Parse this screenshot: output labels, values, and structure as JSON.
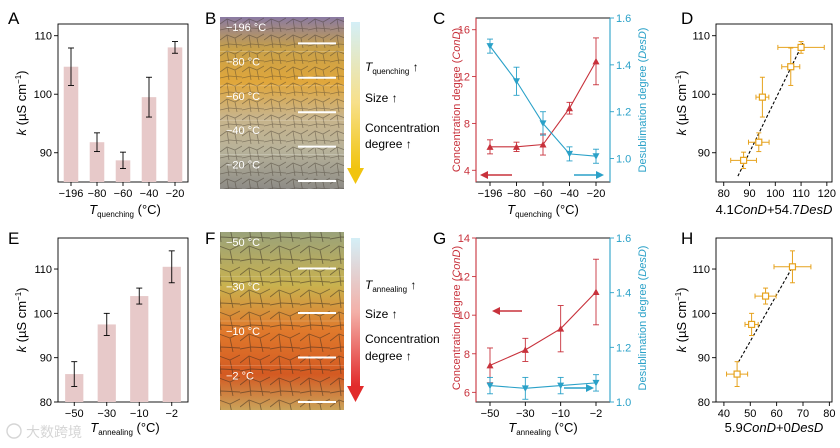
{
  "colors": {
    "bar": "#e7c9c9",
    "bar_stroke": "#c7a3a3",
    "red": "#c8323c",
    "blue": "#2aa1c8",
    "orange": "#e6a21d",
    "arrow_yellow": "#f1c40f",
    "arrow_red": "#e22b2b",
    "arrow_top": "#d4eff7"
  },
  "watermark": "大数跨境",
  "panels": {
    "A": {
      "letter": "A",
      "chart_data": {
        "type": "bar",
        "categories": [
          "−196",
          "−80",
          "−60",
          "−40",
          "−20"
        ],
        "values": [
          104.7,
          91.8,
          88.7,
          99.5,
          108.0
        ],
        "errors": [
          3.2,
          1.6,
          1.4,
          3.4,
          1.0
        ],
        "ylabel_main": "k",
        "ylabel_unit": " (µS cm",
        "ylabel_sup": "−1",
        "ylabel_close": ")",
        "xlabel_main": "T",
        "xlabel_sub": "quenching",
        "xlabel_unit": " (°C)",
        "yticks": [
          "90",
          "100",
          "110"
        ],
        "ylim": [
          85,
          112
        ]
      }
    },
    "B": {
      "letter": "B",
      "image_labels": [
        "−196 °C",
        "−80 °C",
        "−60 °C",
        "−40 °C",
        "−20 °C"
      ],
      "arrow_text": {
        "t_main": "T",
        "t_sub": "quenching",
        "t_arrow": " ↑",
        "size": "Size ↑",
        "conc_line1": "Concentration",
        "conc_line2": "degree ↑"
      }
    },
    "C": {
      "letter": "C",
      "chart_data": {
        "type": "line",
        "x_categories": [
          "−196",
          "−80",
          "−60",
          "−40",
          "−20"
        ],
        "series": [
          {
            "name": "ConD",
            "axis": "left",
            "values": [
              6.0,
              6.0,
              6.2,
              9.3,
              13.3
            ],
            "errors": [
              0.6,
              0.4,
              0.9,
              0.5,
              2.0
            ]
          },
          {
            "name": "DesD",
            "axis": "right",
            "values": [
              1.48,
              1.33,
              1.15,
              1.02,
              1.01
            ],
            "errors": [
              0.03,
              0.06,
              0.05,
              0.03,
              0.03
            ]
          }
        ],
        "ylabel_left": "Concentration degree (",
        "ylabel_left_var": "ConD",
        "ylabel_right": "Desublimation degree (",
        "ylabel_right_var": "DesD",
        "ylabel_close": ")",
        "xlabel_main": "T",
        "xlabel_sub": "quenching",
        "xlabel_unit": " (°C)",
        "yticks_left": [
          "4",
          "8",
          "12",
          "16"
        ],
        "yticks_right": [
          "1.0",
          "1.2",
          "1.4",
          "1.6"
        ],
        "ylim_left": [
          3,
          17
        ],
        "ylim_right": [
          0.9,
          1.6
        ]
      }
    },
    "D": {
      "letter": "D",
      "chart_data": {
        "type": "scatter",
        "points": [
          {
            "x": 87.7,
            "y": 88.7,
            "xerr": 5.0,
            "yerr": 1.4
          },
          {
            "x": 93.6,
            "y": 91.8,
            "xerr": 4.0,
            "yerr": 1.6
          },
          {
            "x": 95.0,
            "y": 99.5,
            "xerr": 2.5,
            "yerr": 3.4
          },
          {
            "x": 106.0,
            "y": 104.7,
            "xerr": 3.5,
            "yerr": 3.2
          },
          {
            "x": 110.0,
            "y": 108.0,
            "xerr": 9.0,
            "yerr": 1.0
          }
        ],
        "fit": {
          "x0": 85.5,
          "y0": 86.0,
          "x1": 111.0,
          "y1": 109.0
        },
        "xlabel_a": "4.1",
        "xlabel_b": "ConD",
        "xlabel_c": "+54.7",
        "xlabel_d": "DesD",
        "ylabel_main": "k",
        "ylabel_unit": " (µS cm",
        "ylabel_sup": "−1",
        "ylabel_close": ")",
        "xticks": [
          "80",
          "90",
          "100",
          "110",
          "120"
        ],
        "yticks": [
          "90",
          "100",
          "110"
        ],
        "xlim": [
          77,
          122
        ],
        "ylim": [
          85,
          112
        ]
      }
    },
    "E": {
      "letter": "E",
      "chart_data": {
        "type": "bar",
        "categories": [
          "−50",
          "−30",
          "−10",
          "−2"
        ],
        "values": [
          86.3,
          97.5,
          103.9,
          110.5
        ],
        "errors": [
          2.8,
          2.5,
          1.8,
          3.6
        ],
        "ylabel_main": "k",
        "ylabel_unit": " (µS cm",
        "ylabel_sup": "−1",
        "ylabel_close": ")",
        "xlabel_main": "T",
        "xlabel_sub": "annealing",
        "xlabel_unit": " (°C)",
        "yticks": [
          "80",
          "90",
          "100",
          "110"
        ],
        "ylim": [
          80,
          117
        ]
      }
    },
    "F": {
      "letter": "F",
      "image_labels": [
        "−50 °C",
        "−30 °C",
        "−10 °C",
        "−2 °C"
      ],
      "arrow_text": {
        "t_main": "T",
        "t_sub": "annealing",
        "t_arrow": " ↑",
        "size": "Size ↑",
        "conc_line1": "Concentration",
        "conc_line2": "degree ↑"
      }
    },
    "G": {
      "letter": "G",
      "chart_data": {
        "type": "line",
        "x_categories": [
          "−50",
          "−30",
          "−10",
          "−2"
        ],
        "series": [
          {
            "name": "ConD",
            "axis": "left",
            "values": [
              7.4,
              8.2,
              9.3,
              11.2
            ],
            "errors": [
              0.9,
              0.6,
              1.2,
              1.7
            ]
          },
          {
            "name": "DesD",
            "axis": "right",
            "values": [
              1.06,
              1.05,
              1.06,
              1.07
            ],
            "errors": [
              0.03,
              0.04,
              0.03,
              0.03
            ]
          }
        ],
        "ylabel_left": "Concentration degree (",
        "ylabel_left_var": "ConD",
        "ylabel_right": "Desublimation degree (",
        "ylabel_right_var": "DesD",
        "ylabel_close": ")",
        "xlabel_main": "T",
        "xlabel_sub": "annealing",
        "xlabel_unit": " (°C)",
        "yticks_left": [
          "6",
          "8",
          "10",
          "12",
          "14"
        ],
        "yticks_right": [
          "1.0",
          "1.2",
          "1.4",
          "1.6"
        ],
        "ylim_left": [
          5.5,
          14
        ],
        "ylim_right": [
          1.0,
          1.6
        ]
      }
    },
    "H": {
      "letter": "H",
      "chart_data": {
        "type": "scatter",
        "points": [
          {
            "x": 45.0,
            "y": 86.3,
            "xerr": 4.0,
            "yerr": 2.8
          },
          {
            "x": 50.5,
            "y": 97.5,
            "xerr": 2.5,
            "yerr": 2.5
          },
          {
            "x": 55.8,
            "y": 103.9,
            "xerr": 4.0,
            "yerr": 1.8
          },
          {
            "x": 66.0,
            "y": 110.5,
            "xerr": 7.0,
            "yerr": 3.6
          }
        ],
        "fit": {
          "x0": 45.5,
          "y0": 89.0,
          "x1": 67.0,
          "y1": 111.5
        },
        "xlabel_a": "5.9",
        "xlabel_b": "ConD",
        "xlabel_c": "+0",
        "xlabel_d": "DesD",
        "ylabel_main": "k",
        "ylabel_unit": " (µS cm",
        "ylabel_sup": "−1",
        "ylabel_close": ")",
        "xticks": [
          "40",
          "50",
          "60",
          "70",
          "80"
        ],
        "yticks": [
          "80",
          "90",
          "100",
          "110"
        ],
        "xlim": [
          37,
          81
        ],
        "ylim": [
          80,
          117
        ]
      }
    }
  }
}
